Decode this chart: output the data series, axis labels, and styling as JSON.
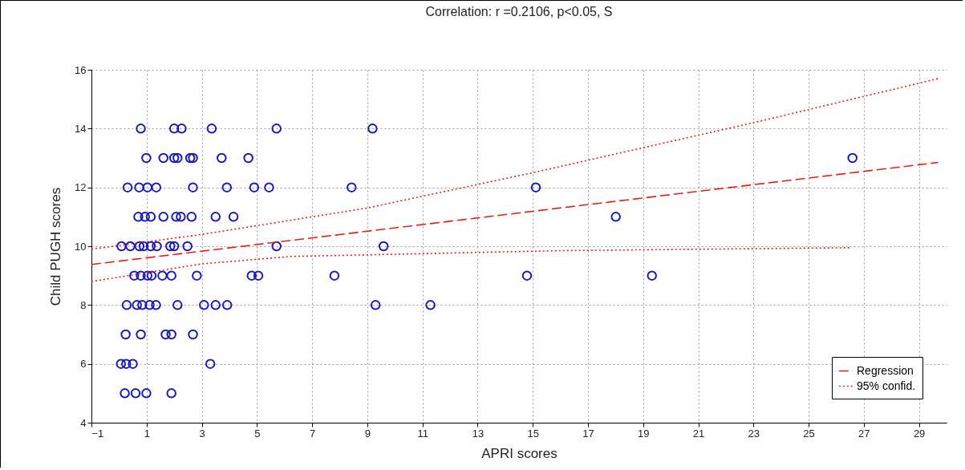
{
  "chart_data": {
    "type": "scatter",
    "title": "Correlation: r =0.2106, p<0.05, S",
    "xlabel": "APRI scores",
    "ylabel": "Child PUGH scores",
    "xlim": [
      -1,
      30
    ],
    "xticks": [
      -1,
      1,
      3,
      5,
      7,
      9,
      11,
      13,
      15,
      17,
      19,
      21,
      23,
      25,
      27,
      29
    ],
    "ylim": [
      4,
      16
    ],
    "yticks": [
      4,
      6,
      8,
      10,
      12,
      14,
      16
    ],
    "grid": true,
    "legend": "bottom right",
    "marker": "circle",
    "series": [
      {
        "color": "#1a1ab4",
        "x": [
          0.79,
          2.0,
          2.27,
          3.36,
          5.71,
          9.19,
          0.99,
          1.61,
          2.0,
          2.12,
          2.58,
          2.68,
          3.72,
          4.69,
          26.59,
          0.31,
          0.73,
          1.03,
          1.35,
          2.68,
          3.91,
          4.9,
          5.44,
          8.43,
          15.11,
          0.7,
          0.94,
          1.15,
          1.61,
          2.07,
          2.24,
          2.63,
          3.5,
          4.15,
          18.01,
          0.09,
          0.41,
          0.74,
          0.89,
          1.15,
          1.37,
          1.86,
          2.0,
          2.48,
          5.71,
          9.59,
          0.55,
          0.79,
          1.03,
          1.18,
          1.57,
          1.9,
          2.82,
          4.81,
          5.05,
          7.81,
          14.79,
          19.32,
          0.28,
          0.65,
          0.84,
          1.11,
          1.34,
          2.12,
          3.08,
          3.5,
          3.92,
          9.3,
          11.29,
          0.24,
          0.79,
          1.69,
          1.9,
          2.68,
          0.07,
          0.26,
          0.5,
          3.31,
          0.21,
          0.6,
          0.99,
          1.9
        ],
        "values": [
          14,
          14,
          14,
          14,
          14,
          14,
          13,
          13,
          13,
          13,
          13,
          13,
          13,
          13,
          13,
          12,
          12,
          12,
          12,
          12,
          12,
          12,
          12,
          12,
          12,
          11,
          11,
          11,
          11,
          11,
          11,
          11,
          11,
          11,
          11,
          10,
          10,
          10,
          10,
          10,
          10,
          10,
          10,
          10,
          10,
          10,
          9,
          9,
          9,
          9,
          9,
          9,
          9,
          9,
          9,
          9,
          9,
          9,
          8,
          8,
          8,
          8,
          8,
          8,
          8,
          8,
          8,
          8,
          8,
          7,
          7,
          7,
          7,
          7,
          6,
          6,
          6,
          6,
          5,
          5,
          5,
          5
        ]
      },
      {
        "type": "line",
        "name": "Regression",
        "color": "#e0201c",
        "line_style": "dashed",
        "marker": "none",
        "x": [
          -1,
          29.7
        ],
        "values": [
          9.38,
          12.85
        ]
      },
      {
        "type": "line",
        "name": "95% confid.",
        "color": "#e0201c",
        "line_style": "dotted",
        "marker": "none",
        "x": [
          -1,
          3,
          9,
          15,
          23,
          29.7
        ],
        "values": [
          9.9,
          10.4,
          11.3,
          12.5,
          14.2,
          15.7
        ]
      },
      {
        "type": "line",
        "color": "#e0201c",
        "line_style": "dotted",
        "marker": "none",
        "x": [
          -1,
          3,
          6.2,
          16,
          26.5
        ],
        "values": [
          8.8,
          9.4,
          9.65,
          9.85,
          9.95
        ]
      }
    ]
  }
}
